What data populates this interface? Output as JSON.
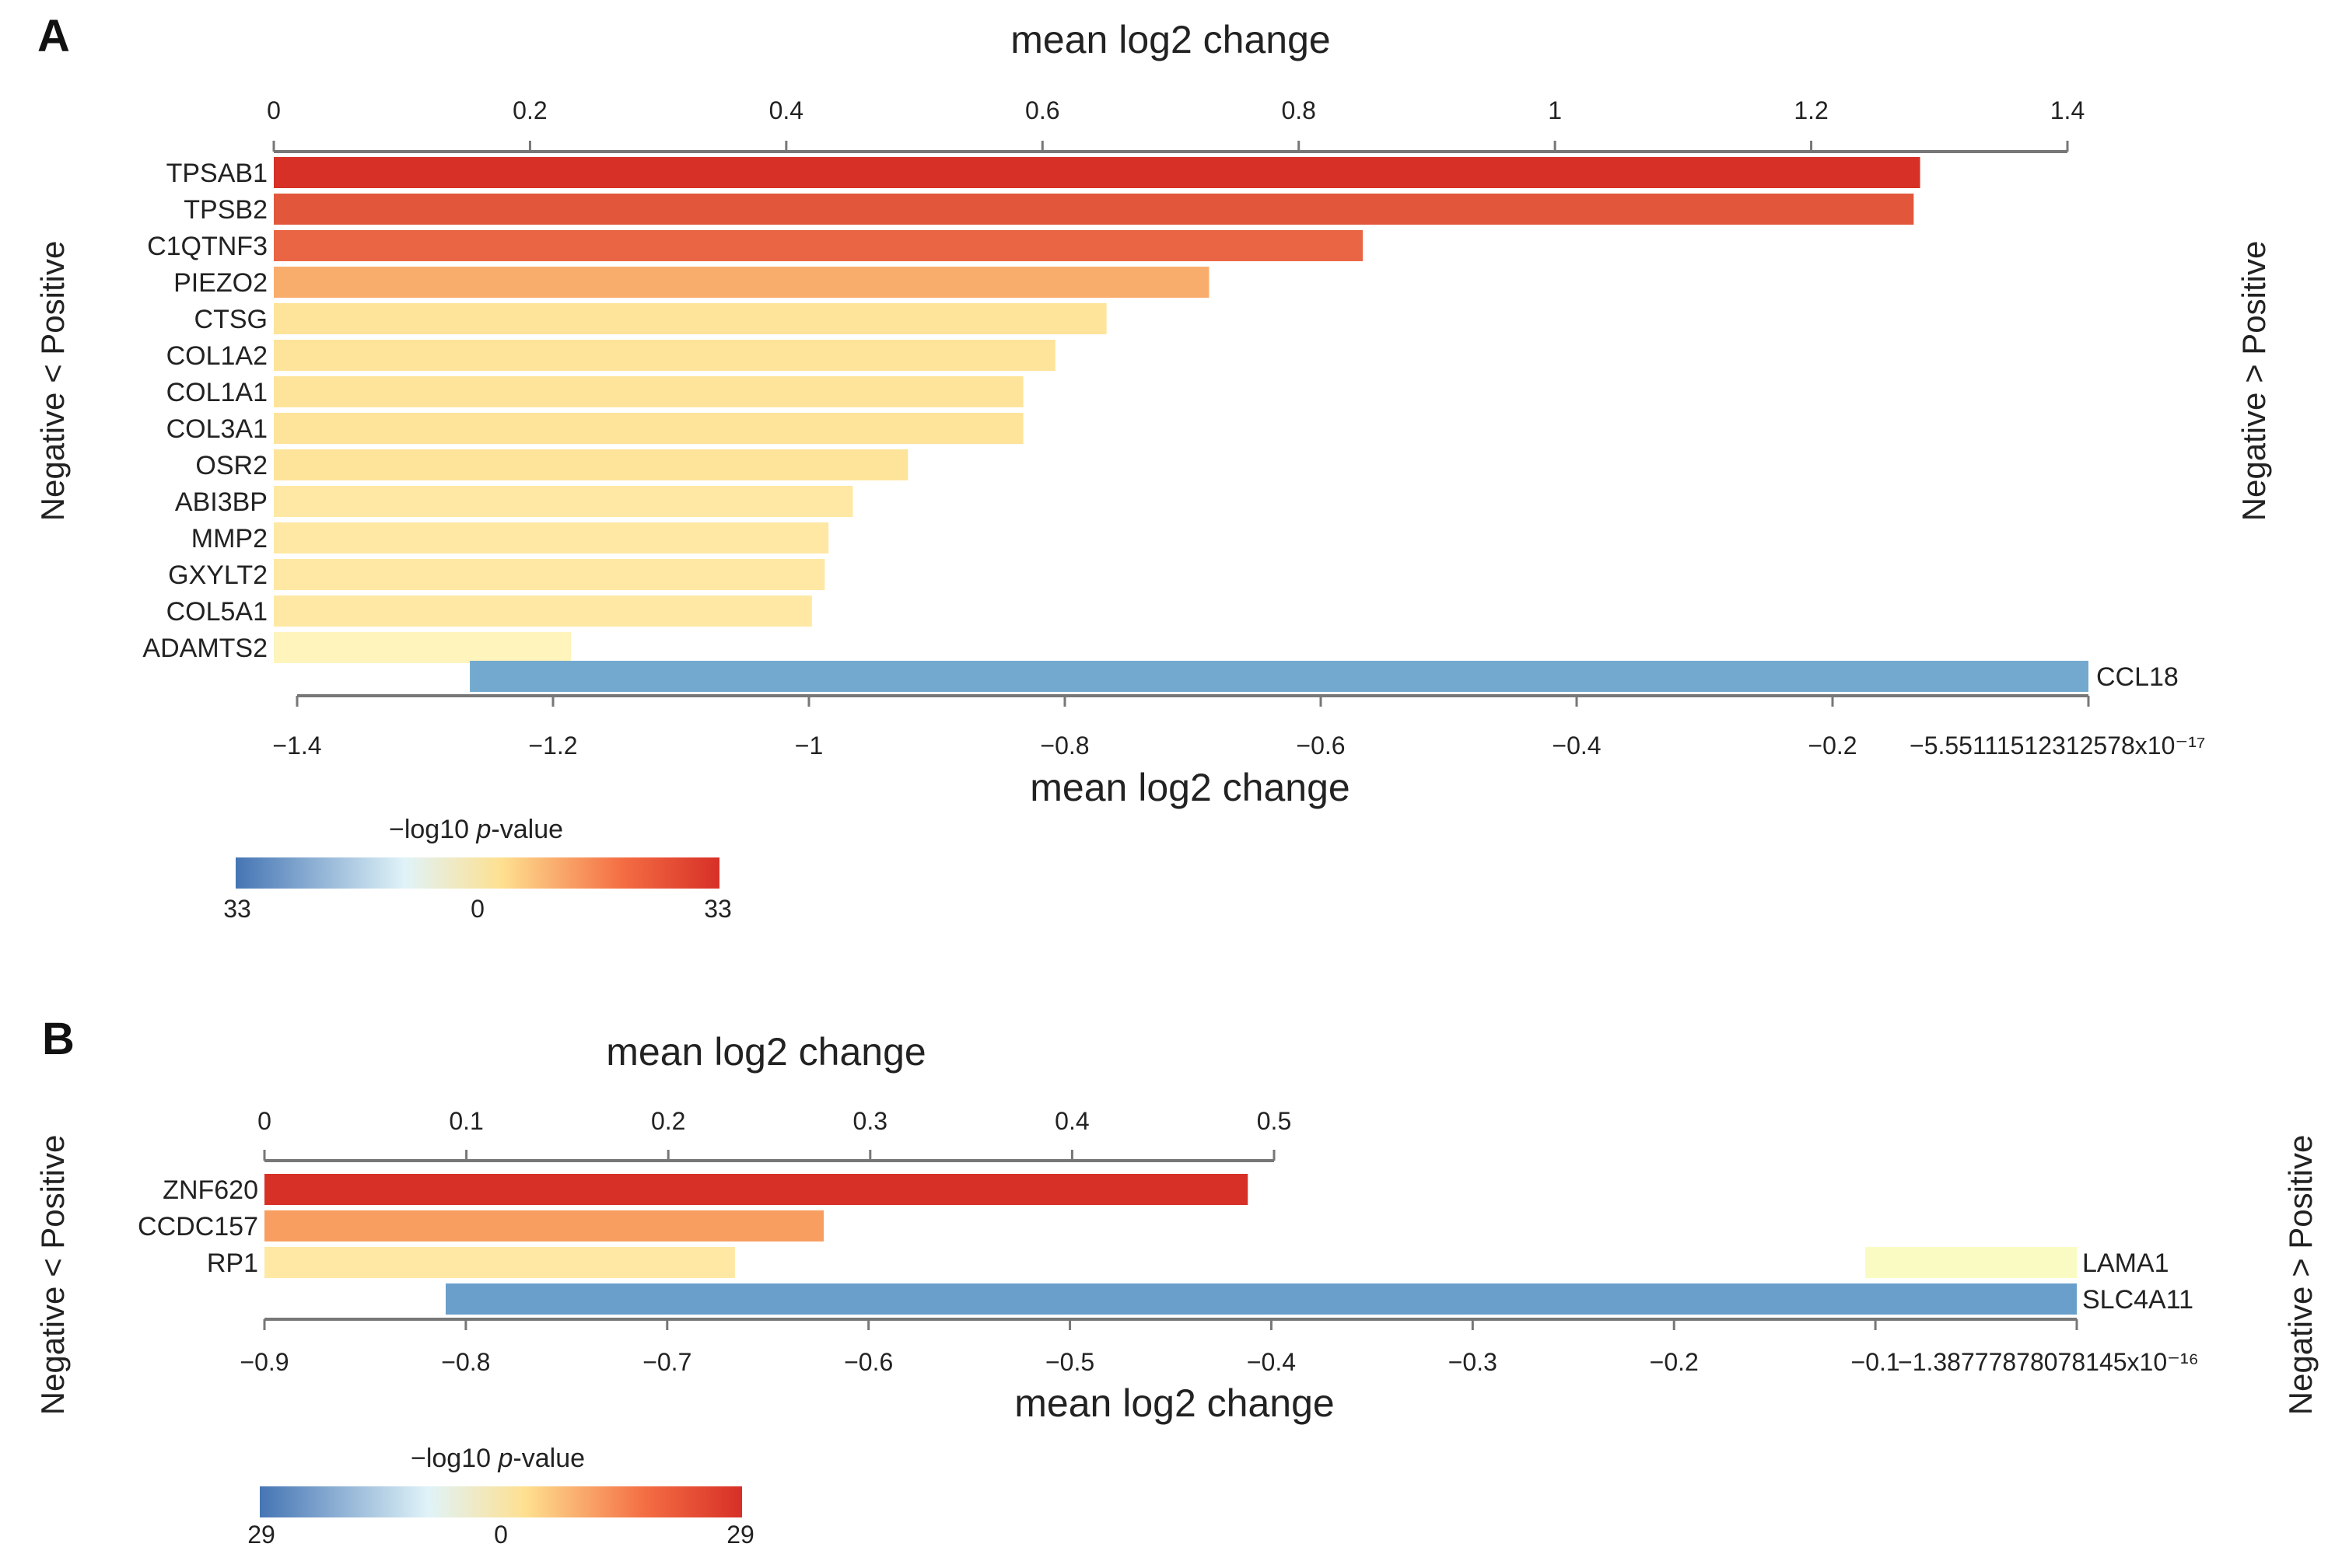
{
  "chart_data": [
    {
      "panel": "A",
      "type": "bar",
      "orientation": "horizontal",
      "top_axis": {
        "label": "mean log2 change",
        "range": [
          0,
          1.4
        ],
        "ticks": [
          0,
          0.2,
          0.4,
          0.6,
          0.8,
          1,
          1.2,
          1.4
        ],
        "tick_labels": [
          "0",
          "0.2",
          "0.4",
          "0.6",
          "0.8",
          "1",
          "1.2",
          "1.4"
        ]
      },
      "bottom_axis": {
        "label": "mean log2 change",
        "range": [
          -1.4,
          0
        ],
        "ticks": [
          -1.4,
          -1.2,
          -1,
          -0.8,
          -0.6,
          -0.4,
          -0.2,
          0
        ],
        "tick_labels": [
          "−1.4",
          "−1.2",
          "−1",
          "−0.8",
          "−0.6",
          "−0.4",
          "−0.2",
          "−5.55111512312578x10⁻¹⁷"
        ]
      },
      "left_side_label": "Negative < Positive",
      "right_side_label": "Negative > Positive",
      "positive_bars": [
        {
          "gene": "TPSAB1",
          "value": 1.285,
          "color": "#d73027"
        },
        {
          "gene": "TPSB2",
          "value": 1.28,
          "color": "#e2563b"
        },
        {
          "gene": "C1QTNF3",
          "value": 0.85,
          "color": "#ea6544"
        },
        {
          "gene": "PIEZO2",
          "value": 0.73,
          "color": "#f9ad6d"
        },
        {
          "gene": "CTSG",
          "value": 0.65,
          "color": "#fee49a"
        },
        {
          "gene": "COL1A2",
          "value": 0.61,
          "color": "#fee49a"
        },
        {
          "gene": "COL1A1",
          "value": 0.585,
          "color": "#fee49a"
        },
        {
          "gene": "COL3A1",
          "value": 0.585,
          "color": "#fee49a"
        },
        {
          "gene": "OSR2",
          "value": 0.495,
          "color": "#fee49a"
        },
        {
          "gene": "ABI3BP",
          "value": 0.452,
          "color": "#fee8a4"
        },
        {
          "gene": "MMP2",
          "value": 0.433,
          "color": "#fee8a4"
        },
        {
          "gene": "GXYLT2",
          "value": 0.43,
          "color": "#fee8a4"
        },
        {
          "gene": "COL5A1",
          "value": 0.42,
          "color": "#fee8a4"
        },
        {
          "gene": "ADAMTS2",
          "value": 0.232,
          "color": "#fef4bc"
        }
      ],
      "negative_bars": [
        {
          "gene": "CCL18",
          "value": -1.265,
          "color": "#74a9cf"
        }
      ],
      "legend": {
        "title_prefix": "−log10 ",
        "title_italic": "p",
        "title_suffix": "-value",
        "ticks": [
          "33",
          "0",
          "33"
        ],
        "colors": [
          "#4575b4",
          "#e0f3f8",
          "#fee090",
          "#f46d43",
          "#d73027"
        ]
      }
    },
    {
      "panel": "B",
      "type": "bar",
      "orientation": "horizontal",
      "top_axis": {
        "label": "mean log2 change",
        "range": [
          0,
          0.5
        ],
        "ticks": [
          0,
          0.1,
          0.2,
          0.3,
          0.4,
          0.5
        ],
        "tick_labels": [
          "0",
          "0.1",
          "0.2",
          "0.3",
          "0.4",
          "0.5"
        ]
      },
      "bottom_axis": {
        "label": "mean log2 change",
        "range": [
          -0.9,
          0
        ],
        "ticks": [
          -0.9,
          -0.8,
          -0.7,
          -0.6,
          -0.5,
          -0.4,
          -0.3,
          -0.2,
          -0.1,
          0
        ],
        "tick_labels": [
          "−0.9",
          "−0.8",
          "−0.7",
          "−0.6",
          "−0.5",
          "−0.4",
          "−0.3",
          "−0.2",
          "−0.1",
          "−1.38777878078145x10⁻¹⁶"
        ]
      },
      "left_side_label": "Negative < Positive",
      "right_side_label": "Negative > Positive",
      "positive_bars": [
        {
          "gene": "ZNF620",
          "value": 0.487,
          "color": "#d73027"
        },
        {
          "gene": "CCDC157",
          "value": 0.277,
          "color": "#f89e60"
        },
        {
          "gene": "RP1",
          "value": 0.233,
          "color": "#fee8a4"
        }
      ],
      "negative_bars": [
        {
          "gene": "LAMA1",
          "value": -0.105,
          "color": "#fafbc2"
        },
        {
          "gene": "SLC4A11",
          "value": -0.81,
          "color": "#6a9fcb"
        }
      ],
      "legend": {
        "title_prefix": "−log10 ",
        "title_italic": "p",
        "title_suffix": "-value",
        "ticks": [
          "29",
          "0",
          "29"
        ],
        "colors": [
          "#4575b4",
          "#e0f3f8",
          "#fee090",
          "#f46d43",
          "#d73027"
        ]
      }
    }
  ],
  "panel_labels": [
    "A",
    "B"
  ]
}
